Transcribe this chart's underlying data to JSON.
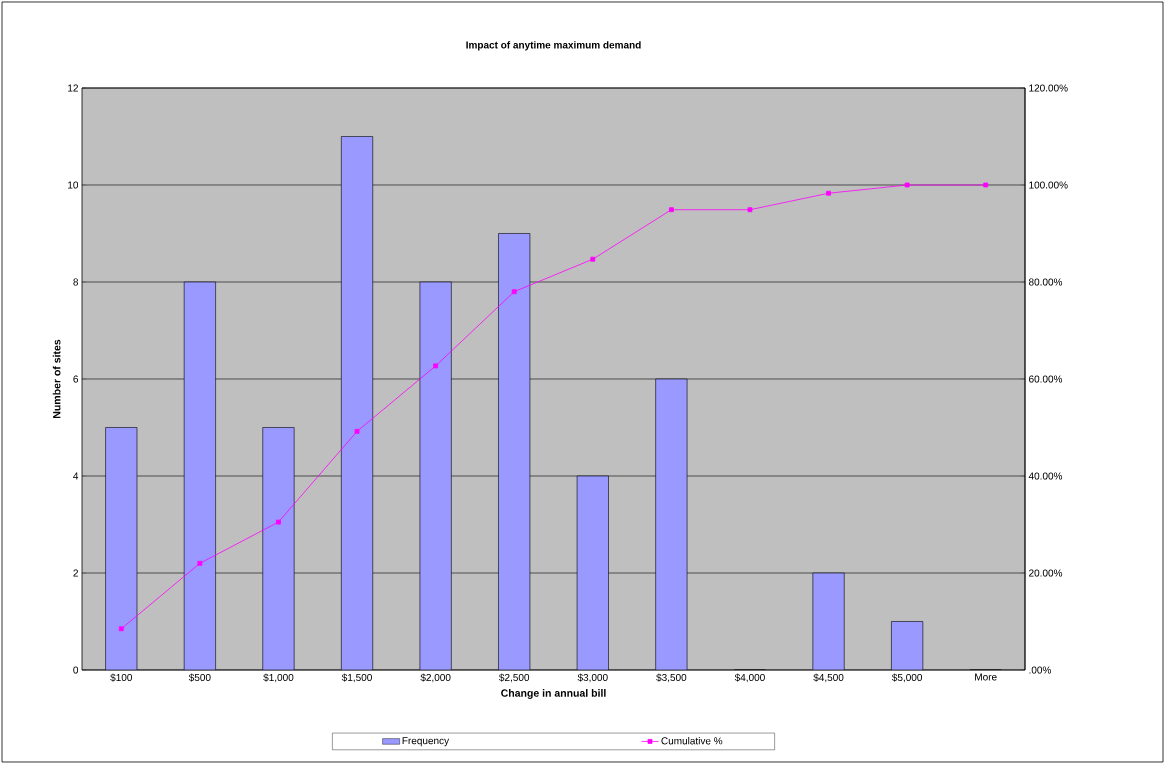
{
  "chart_data": {
    "type": "bar",
    "title": "Impact of anytime maximum demand",
    "xlabel": "Change in annual bill",
    "ylabel": "Number of sites",
    "categories": [
      "$100",
      "$500",
      "$1,000",
      "$1,500",
      "$2,000",
      "$2,500",
      "$3,000",
      "$3,500",
      "$4,000",
      "$4,500",
      "$5,000",
      "More"
    ],
    "series": [
      {
        "name": "Frequency",
        "color": "#9999ff",
        "values": [
          5,
          8,
          5,
          11,
          8,
          9,
          4,
          6,
          0,
          2,
          1,
          0
        ]
      },
      {
        "name": "Cumulative %",
        "type": "line",
        "axis": "y2",
        "color": "#ff00ff",
        "marker": "square",
        "values": [
          8.5,
          22.0,
          30.5,
          49.2,
          62.7,
          78.0,
          84.7,
          94.9,
          94.9,
          98.3,
          100,
          100
        ]
      }
    ],
    "ylim": [
      0,
      12
    ],
    "yticks": [
      0,
      2,
      4,
      6,
      8,
      10,
      12
    ],
    "y2lim": [
      0,
      120
    ],
    "y2ticks": [
      {
        "value": 0,
        "label": ".00%"
      },
      {
        "value": 20,
        "label": "20.00%"
      },
      {
        "value": 40,
        "label": "40.00%"
      },
      {
        "value": 60,
        "label": "60.00%"
      },
      {
        "value": 80,
        "label": "80.00%"
      },
      {
        "value": 100,
        "label": "100.00%"
      },
      {
        "value": 120,
        "label": "120.00%"
      }
    ],
    "grid": "y",
    "legend": "bottom"
  }
}
